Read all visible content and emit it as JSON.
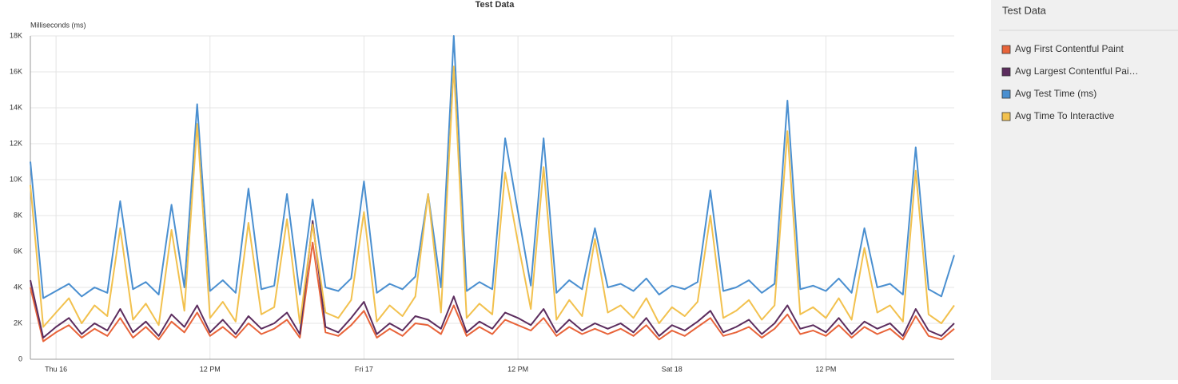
{
  "chart_data": {
    "type": "line",
    "title": "Test Data",
    "y_label": "Milliseconds (ms)",
    "legend_title": "Test Data",
    "x": [
      -2,
      -1,
      0,
      1,
      2,
      3,
      4,
      5,
      6,
      7,
      8,
      9,
      10,
      11,
      12,
      13,
      14,
      15,
      16,
      17,
      18,
      19,
      20,
      21,
      22,
      23,
      24,
      25,
      26,
      27,
      28,
      29,
      30,
      31,
      32,
      33,
      34,
      35,
      36,
      37,
      38,
      39,
      40,
      41,
      42,
      43,
      44,
      45,
      46,
      47,
      48,
      49,
      50,
      51,
      52,
      53,
      54,
      55,
      56,
      57,
      58,
      59,
      60,
      61,
      62,
      63,
      64,
      65,
      66,
      67,
      68,
      69,
      70
    ],
    "xlim": [
      -2,
      70
    ],
    "xticks": [
      {
        "value": 0,
        "label": "Thu 16"
      },
      {
        "value": 12,
        "label": "12 PM"
      },
      {
        "value": 24,
        "label": "Fri 17"
      },
      {
        "value": 36,
        "label": "12 PM"
      },
      {
        "value": 48,
        "label": "Sat 18"
      },
      {
        "value": 60,
        "label": "12 PM"
      }
    ],
    "ylim": [
      0,
      18000
    ],
    "yticks": [
      0,
      {
        "value": 2000,
        "label": "2K"
      },
      {
        "value": 4000,
        "label": "4K"
      },
      {
        "value": 6000,
        "label": "6K"
      },
      {
        "value": 8000,
        "label": "8K"
      },
      {
        "value": 10000,
        "label": "10K"
      },
      {
        "value": 12000,
        "label": "12K"
      },
      {
        "value": 14000,
        "label": "14K"
      },
      {
        "value": 16000,
        "label": "16K"
      },
      {
        "value": 18000,
        "label": "18K"
      }
    ],
    "grid": true,
    "series": [
      {
        "name": "Avg Test Time (ms)",
        "color": "#4a8fd0",
        "values": [
          11000,
          3400,
          3800,
          4200,
          3500,
          4000,
          3700,
          8800,
          3900,
          4300,
          3600,
          8600,
          4000,
          14200,
          3800,
          4400,
          3700,
          9500,
          3900,
          4100,
          9200,
          3600,
          8900,
          4000,
          3800,
          4500,
          9900,
          3700,
          4200,
          3900,
          4600,
          9200,
          4000,
          18000,
          3800,
          4300,
          3900,
          12300,
          8200,
          4100,
          12300,
          3700,
          4400,
          3900,
          7300,
          4000,
          4200,
          3800,
          4500,
          3600,
          4100,
          3900,
          4300,
          9400,
          3800,
          4000,
          4400,
          3700,
          4200,
          14400,
          3900,
          4100,
          3800,
          4500,
          3700,
          7300,
          4000,
          4200,
          3600,
          11800,
          3900,
          3500,
          5800
        ]
      },
      {
        "name": "Avg First Contentful Paint",
        "color": "#e8643a",
        "values": [
          4000,
          1000,
          1500,
          1900,
          1200,
          1700,
          1300,
          2300,
          1200,
          1800,
          1100,
          2100,
          1500,
          2600,
          1300,
          1800,
          1200,
          2000,
          1400,
          1700,
          2200,
          1200,
          6500,
          1500,
          1300,
          1900,
          2700,
          1200,
          1700,
          1300,
          2000,
          1900,
          1400,
          3000,
          1300,
          1800,
          1400,
          2200,
          1900,
          1600,
          2300,
          1300,
          1800,
          1400,
          1700,
          1400,
          1700,
          1300,
          1900,
          1100,
          1600,
          1300,
          1800,
          2300,
          1300,
          1500,
          1800,
          1200,
          1700,
          2500,
          1400,
          1600,
          1300,
          1900,
          1200,
          1800,
          1400,
          1700,
          1100,
          2400,
          1300,
          1100,
          1700
        ]
      },
      {
        "name": "Avg Largest Contentful Pai…",
        "color": "#5c2d5e",
        "values": [
          4400,
          1200,
          1800,
          2300,
          1400,
          2000,
          1600,
          2800,
          1500,
          2100,
          1300,
          2500,
          1800,
          3000,
          1500,
          2200,
          1400,
          2400,
          1700,
          2000,
          2600,
          1400,
          7700,
          1800,
          1500,
          2300,
          3200,
          1400,
          2000,
          1600,
          2400,
          2200,
          1700,
          3500,
          1500,
          2100,
          1700,
          2600,
          2300,
          1900,
          2800,
          1500,
          2200,
          1600,
          2000,
          1700,
          2000,
          1500,
          2300,
          1300,
          1900,
          1600,
          2100,
          2700,
          1500,
          1800,
          2200,
          1400,
          2000,
          3000,
          1700,
          1900,
          1500,
          2300,
          1400,
          2100,
          1700,
          2000,
          1300,
          2800,
          1600,
          1300,
          2000
        ]
      },
      {
        "name": "Avg Time To Interactive",
        "color": "#f2c14e",
        "values": [
          9700,
          1800,
          2600,
          3400,
          2000,
          3000,
          2400,
          7300,
          2200,
          3100,
          1900,
          7200,
          2700,
          13100,
          2300,
          3200,
          2100,
          7600,
          2500,
          2900,
          7800,
          2000,
          7500,
          2600,
          2300,
          3300,
          8200,
          2100,
          3000,
          2400,
          3500,
          9200,
          2600,
          16300,
          2300,
          3100,
          2500,
          10400,
          6500,
          2800,
          10700,
          2200,
          3300,
          2400,
          6700,
          2600,
          3000,
          2300,
          3400,
          2000,
          2900,
          2400,
          3200,
          8000,
          2300,
          2700,
          3300,
          2200,
          3000,
          12700,
          2500,
          2900,
          2300,
          3400,
          2200,
          6200,
          2600,
          3000,
          2100,
          10500,
          2500,
          2000,
          3000
        ]
      }
    ],
    "legend_order": [
      1,
      2,
      0,
      3
    ]
  }
}
